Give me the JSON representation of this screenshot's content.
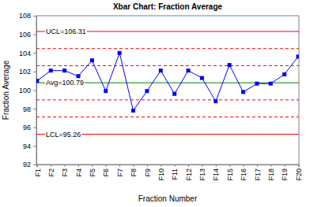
{
  "chart_data": {
    "type": "line",
    "title": "Xbar Chart: Fraction Average",
    "x_label": "Fraction Number",
    "y_label": "Fraction Average",
    "categories": [
      "F1",
      "F2",
      "F3",
      "F4",
      "F5",
      "F6",
      "F7",
      "F8",
      "F9",
      "F10",
      "F11",
      "F12",
      "F13",
      "F14",
      "F15",
      "F16",
      "F17",
      "F18",
      "F19",
      "F20"
    ],
    "series": [
      {
        "name": "Fraction Average",
        "color": "#0000ff",
        "marker": "square",
        "line_style": "solid",
        "values": [
          101.0,
          102.1,
          102.1,
          101.5,
          103.2,
          99.9,
          104.0,
          97.8,
          99.9,
          102.1,
          99.6,
          102.1,
          101.3,
          98.8,
          102.7,
          99.8,
          100.7,
          100.7,
          101.7,
          103.6
        ]
      }
    ],
    "ylim": [
      92,
      108
    ],
    "yticks": [
      92,
      94,
      96,
      98,
      100,
      102,
      104,
      106,
      108
    ],
    "grid": false,
    "reference_lines": [
      {
        "value": 106.31,
        "label": "UCL=106.31",
        "color": "#ff0000",
        "line_style": "solid"
      },
      {
        "value": 100.79,
        "label": "Avg=100.79",
        "color": "#008000",
        "line_style": "solid"
      },
      {
        "value": 95.26,
        "label": "LCL=95.26",
        "color": "#ff0000",
        "line_style": "solid"
      }
    ],
    "zone_lines": {
      "values": [
        97.11,
        98.95,
        102.63,
        104.47
      ],
      "color": "#ff0000",
      "line_style": "dashed"
    }
  }
}
